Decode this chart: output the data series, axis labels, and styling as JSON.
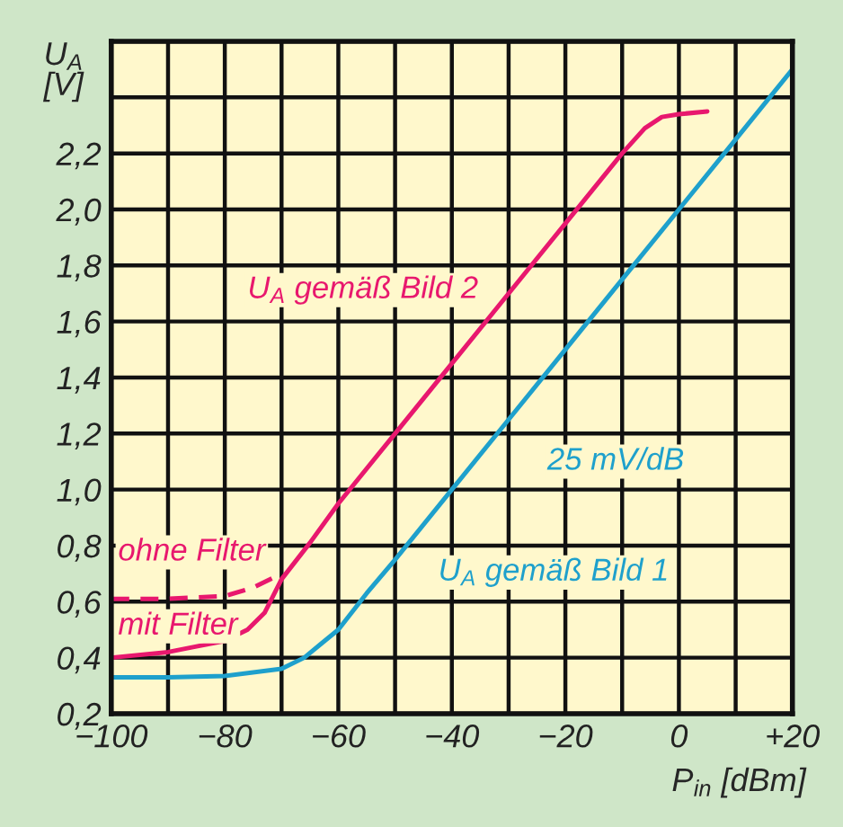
{
  "chart_data": {
    "type": "line",
    "xlabel": "P$_{in}$ [dBm]",
    "ylabel": "U$_{A}$ [V]",
    "xlim": [
      -100,
      20
    ],
    "ylim": [
      0.2,
      2.6
    ],
    "xticks": [
      {
        "value": -100,
        "label": "−100"
      },
      {
        "value": -90,
        "label": null
      },
      {
        "value": -80,
        "label": "−80"
      },
      {
        "value": -70,
        "label": null
      },
      {
        "value": -60,
        "label": "−60"
      },
      {
        "value": -50,
        "label": null
      },
      {
        "value": -40,
        "label": "−40"
      },
      {
        "value": -30,
        "label": null
      },
      {
        "value": -20,
        "label": "−20"
      },
      {
        "value": -10,
        "label": null
      },
      {
        "value": 0,
        "label": "0"
      },
      {
        "value": 10,
        "label": null
      },
      {
        "value": 20,
        "label": "+20"
      }
    ],
    "yticks": [
      {
        "value": 0.2,
        "label": "0,2"
      },
      {
        "value": 0.4,
        "label": "0,4"
      },
      {
        "value": 0.6,
        "label": "0,6"
      },
      {
        "value": 0.8,
        "label": "0,8"
      },
      {
        "value": 1.0,
        "label": "1,0"
      },
      {
        "value": 1.2,
        "label": "1,2"
      },
      {
        "value": 1.4,
        "label": "1,4"
      },
      {
        "value": 1.6,
        "label": "1,6"
      },
      {
        "value": 1.8,
        "label": "1,8"
      },
      {
        "value": 2.0,
        "label": "2,0"
      },
      {
        "value": 2.2,
        "label": "2,2"
      },
      {
        "value": 2.4,
        "label": null
      },
      {
        "value": 2.6,
        "label": null
      }
    ],
    "grid": true,
    "marker": "none",
    "series": [
      {
        "color": "#e8186e",
        "line_style": "solid",
        "x": [
          -100,
          -90,
          -85,
          -80,
          -76,
          -73,
          -70,
          -65,
          -60,
          -50,
          -40,
          -30,
          -20,
          -10,
          -6,
          -3,
          0,
          5
        ],
        "values": [
          0.4,
          0.42,
          0.44,
          0.46,
          0.5,
          0.56,
          0.68,
          0.81,
          0.95,
          1.2,
          1.45,
          1.7,
          1.95,
          2.2,
          2.29,
          2.33,
          2.34,
          2.35
        ]
      },
      {
        "color": "#e8186e",
        "line_style": "dashed",
        "x": [
          -100,
          -90,
          -80,
          -75,
          -70
        ],
        "values": [
          0.61,
          0.61,
          0.62,
          0.65,
          0.7
        ]
      },
      {
        "color": "#1ea0cc",
        "line_style": "solid",
        "x": [
          -100,
          -90,
          -80,
          -70,
          -66,
          -63,
          -60,
          -55,
          -50,
          -40,
          -30,
          -20,
          -10,
          0,
          10,
          20
        ],
        "values": [
          0.33,
          0.33,
          0.335,
          0.36,
          0.4,
          0.45,
          0.5,
          0.63,
          0.75,
          1.0,
          1.25,
          1.5,
          1.75,
          2.0,
          2.25,
          2.5
        ]
      }
    ],
    "annotations": [
      "U$_{A}$ gemäß Bild 2",
      "25 mV/dB",
      "U$_{A}$ gemäß Bild 1",
      "ohne Filter",
      "mit Filter"
    ]
  }
}
